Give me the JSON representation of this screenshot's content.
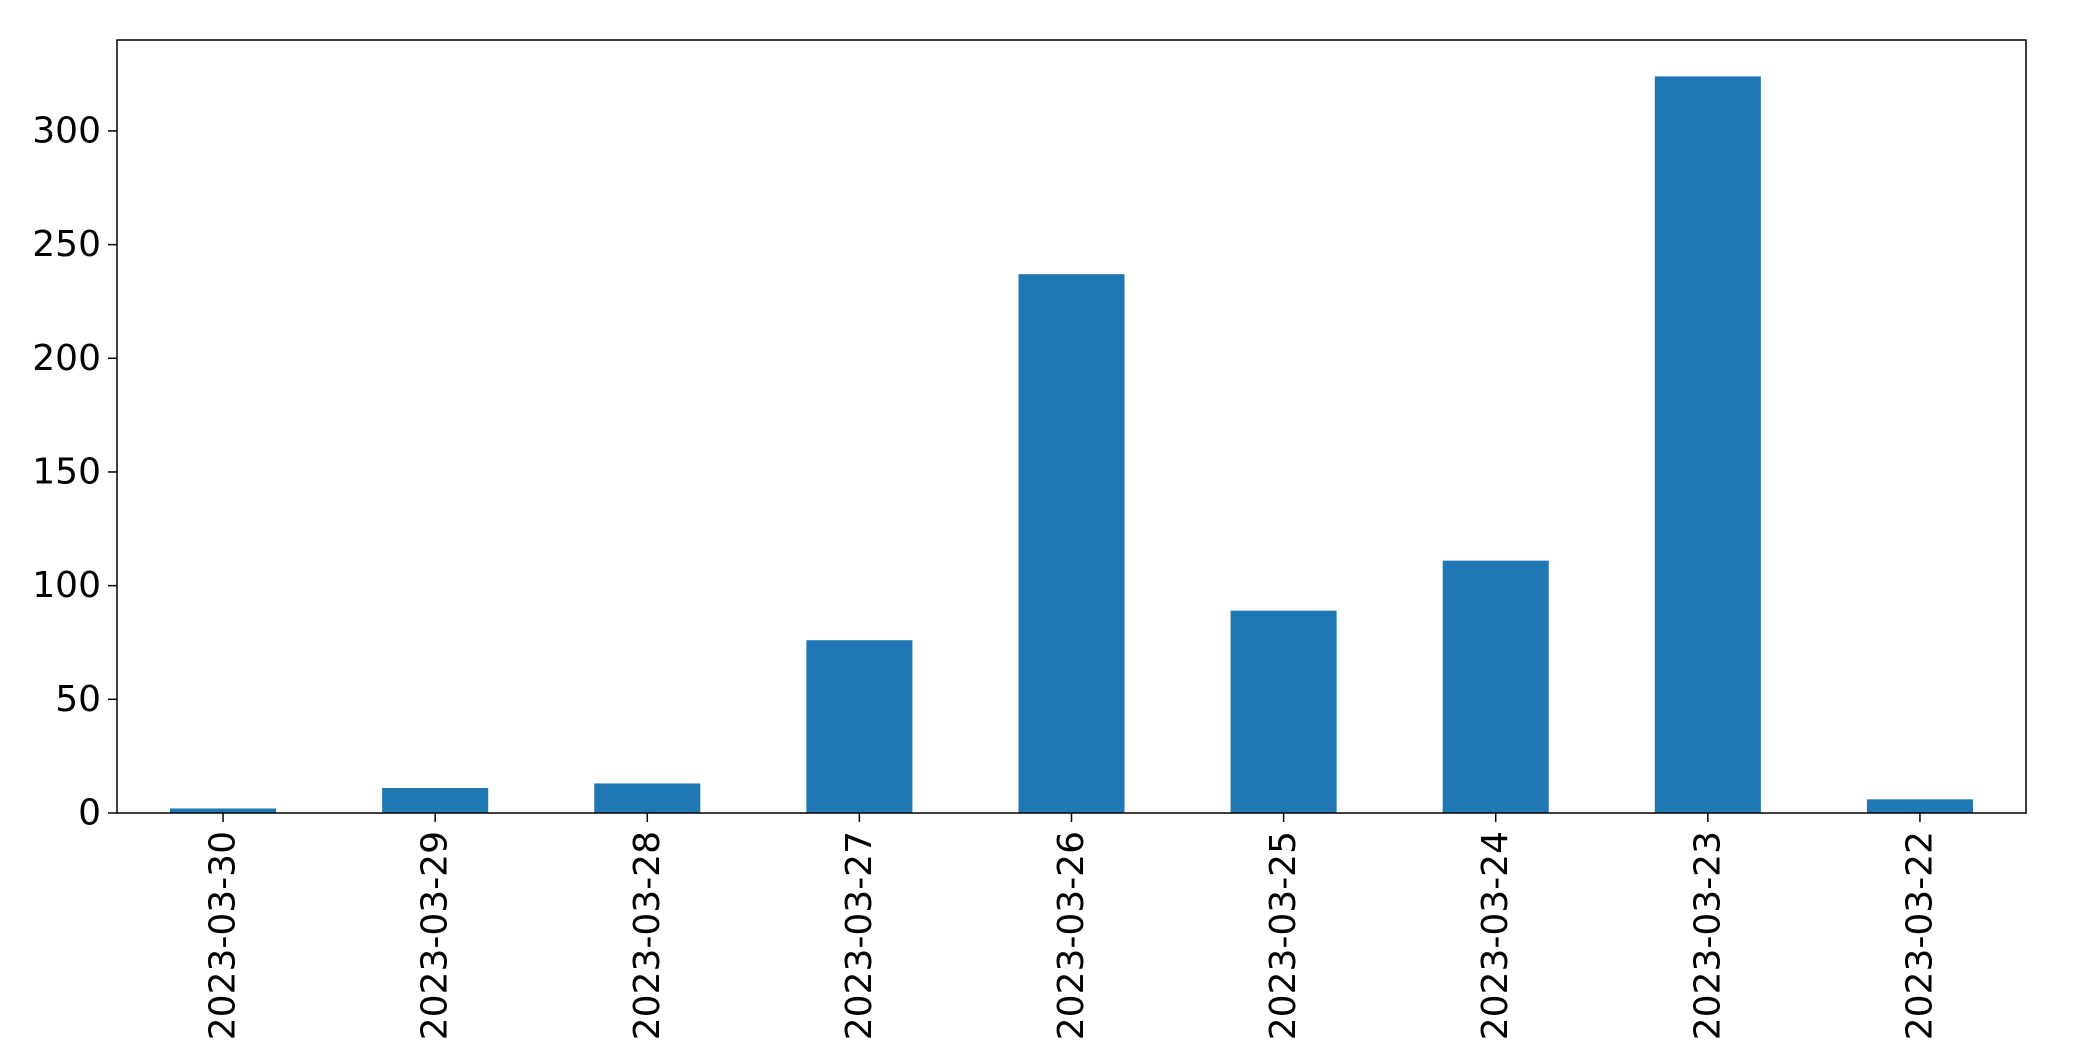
{
  "chart_data": {
    "type": "bar",
    "title": "",
    "xlabel": "",
    "ylabel": "",
    "categories": [
      "2023-03-30",
      "2023-03-29",
      "2023-03-28",
      "2023-03-27",
      "2023-03-26",
      "2023-03-25",
      "2023-03-24",
      "2023-03-23",
      "2023-03-22"
    ],
    "values": [
      2,
      11,
      13,
      76,
      237,
      89,
      111,
      324,
      6
    ],
    "ylim": [
      0,
      340
    ],
    "yticks": [
      0,
      50,
      100,
      150,
      200,
      250,
      300
    ],
    "bar_color": "#1f77b4",
    "grid": false,
    "legend": "none"
  }
}
